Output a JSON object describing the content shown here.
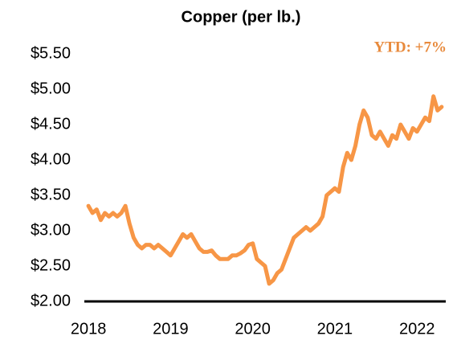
{
  "chart_data": {
    "type": "line",
    "title": "Copper (per lb.)",
    "annotation": "YTD: +7%",
    "x": [
      2018.0,
      2018.05,
      2018.1,
      2018.15,
      2018.2,
      2018.25,
      2018.3,
      2018.35,
      2018.4,
      2018.45,
      2018.5,
      2018.55,
      2018.6,
      2018.65,
      2018.7,
      2018.75,
      2018.8,
      2018.85,
      2018.9,
      2018.95,
      2019.0,
      2019.05,
      2019.1,
      2019.15,
      2019.2,
      2019.25,
      2019.3,
      2019.35,
      2019.4,
      2019.45,
      2019.5,
      2019.55,
      2019.6,
      2019.65,
      2019.7,
      2019.75,
      2019.8,
      2019.85,
      2019.9,
      2019.95,
      2020.0,
      2020.05,
      2020.1,
      2020.15,
      2020.2,
      2020.25,
      2020.3,
      2020.35,
      2020.4,
      2020.45,
      2020.5,
      2020.55,
      2020.6,
      2020.65,
      2020.7,
      2020.75,
      2020.8,
      2020.85,
      2020.9,
      2020.95,
      2021.0,
      2021.05,
      2021.1,
      2021.15,
      2021.2,
      2021.25,
      2021.3,
      2021.35,
      2021.4,
      2021.45,
      2021.5,
      2021.55,
      2021.6,
      2021.65,
      2021.7,
      2021.75,
      2021.8,
      2021.85,
      2021.9,
      2021.95,
      2022.0,
      2022.05,
      2022.1,
      2022.15,
      2022.2,
      2022.25,
      2022.3
    ],
    "series": [
      {
        "name": "Copper",
        "color": "#f79646",
        "values": [
          3.35,
          3.25,
          3.3,
          3.15,
          3.25,
          3.2,
          3.25,
          3.2,
          3.25,
          3.35,
          3.1,
          2.9,
          2.8,
          2.75,
          2.8,
          2.8,
          2.75,
          2.8,
          2.75,
          2.7,
          2.65,
          2.75,
          2.85,
          2.95,
          2.9,
          2.95,
          2.85,
          2.75,
          2.7,
          2.7,
          2.72,
          2.65,
          2.6,
          2.6,
          2.6,
          2.65,
          2.65,
          2.68,
          2.72,
          2.8,
          2.82,
          2.6,
          2.55,
          2.5,
          2.25,
          2.3,
          2.4,
          2.45,
          2.6,
          2.75,
          2.9,
          2.95,
          3.0,
          3.05,
          3.0,
          3.05,
          3.1,
          3.2,
          3.5,
          3.55,
          3.6,
          3.55,
          3.9,
          4.1,
          4.0,
          4.2,
          4.5,
          4.7,
          4.6,
          4.35,
          4.3,
          4.4,
          4.3,
          4.2,
          4.35,
          4.3,
          4.5,
          4.4,
          4.3,
          4.45,
          4.4,
          4.5,
          4.6,
          4.55,
          4.9,
          4.7,
          4.75
        ]
      }
    ],
    "xlim": [
      2017.95,
      2022.35
    ],
    "xticks": [
      2018,
      2019,
      2020,
      2021,
      2022
    ],
    "ylim": [
      2,
      5.5
    ],
    "yticks": [
      {
        "value": 2,
        "label": "$2.00"
      },
      {
        "value": 2.5,
        "label": "$2.50"
      },
      {
        "value": 3,
        "label": "$3.00"
      },
      {
        "value": 3.5,
        "label": "$3.50"
      },
      {
        "value": 4,
        "label": "$4.00"
      },
      {
        "value": 4.5,
        "label": "$4.50"
      },
      {
        "value": 5,
        "label": "$5.00"
      },
      {
        "value": 5.5,
        "label": "$5.50"
      }
    ],
    "grid": false
  }
}
